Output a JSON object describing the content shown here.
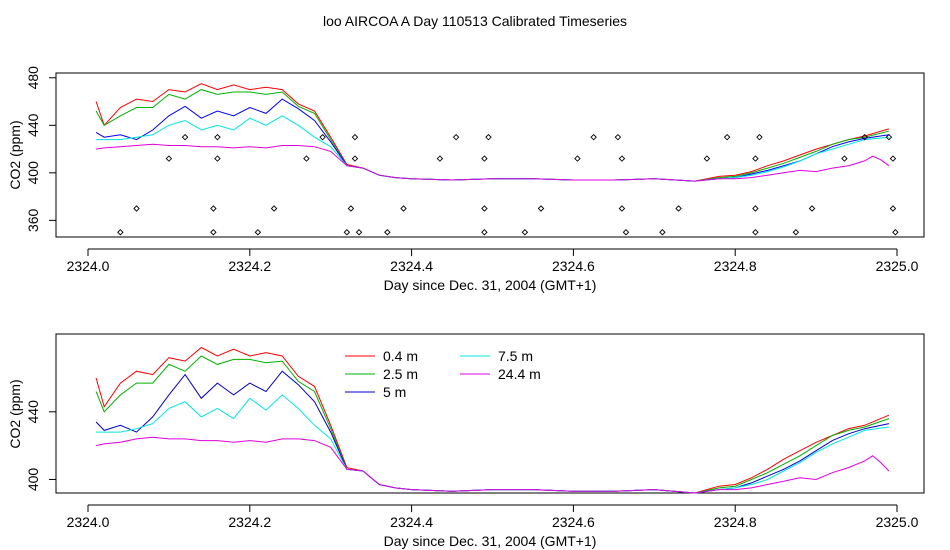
{
  "figure": {
    "title": "loo AIRCOA A  Day 110513  Calibrated Timeseries"
  },
  "chart_data": [
    {
      "type": "line",
      "xlabel": "Day since Dec. 31, 2004 (GMT+1)",
      "ylabel": "CO2 (ppm)",
      "xlim": [
        2324.0,
        2325.0
      ],
      "ylim": [
        346,
        484
      ],
      "xticks": [
        2324.0,
        2324.2,
        2324.4,
        2324.6,
        2324.8,
        2325.0
      ],
      "xtick_labels": [
        "2324.0",
        "2324.2",
        "2324.4",
        "2324.6",
        "2324.8",
        "2325.0"
      ],
      "yticks": [
        360,
        400,
        440,
        480
      ],
      "ytick_labels": [
        "360",
        "400",
        "440",
        "480"
      ],
      "grid": false,
      "legend": "none",
      "series": [
        {
          "color": "#ff0000",
          "x": [
            2324.01,
            2324.02,
            2324.04,
            2324.06,
            2324.08,
            2324.1,
            2324.12,
            2324.14,
            2324.16,
            2324.18,
            2324.2,
            2324.22,
            2324.24,
            2324.26,
            2324.28,
            2324.3,
            2324.32,
            2324.34,
            2324.36,
            2324.38,
            2324.4,
            2324.45,
            2324.5,
            2324.55,
            2324.6,
            2324.65,
            2324.7,
            2324.75,
            2324.78,
            2324.8,
            2324.82,
            2324.84,
            2324.86,
            2324.88,
            2324.9,
            2324.92,
            2324.94,
            2324.96,
            2324.99
          ],
          "values": [
            460,
            440,
            455,
            462,
            460,
            470,
            468,
            475,
            470,
            474,
            470,
            472,
            470,
            458,
            452,
            430,
            407,
            404,
            398,
            396,
            395,
            394,
            395,
            395,
            394,
            394,
            395,
            393,
            397,
            398,
            401,
            406,
            410,
            415,
            420,
            424,
            428,
            431,
            437
          ]
        },
        {
          "color": "#00b000",
          "x": [
            2324.01,
            2324.02,
            2324.04,
            2324.06,
            2324.08,
            2324.1,
            2324.12,
            2324.14,
            2324.16,
            2324.18,
            2324.2,
            2324.22,
            2324.24,
            2324.26,
            2324.28,
            2324.3,
            2324.32,
            2324.34,
            2324.36,
            2324.38,
            2324.4,
            2324.45,
            2324.5,
            2324.55,
            2324.6,
            2324.65,
            2324.7,
            2324.75,
            2324.78,
            2324.8,
            2324.82,
            2324.84,
            2324.86,
            2324.88,
            2324.9,
            2324.92,
            2324.94,
            2324.96,
            2324.99
          ],
          "values": [
            452,
            440,
            448,
            455,
            455,
            466,
            462,
            470,
            466,
            468,
            468,
            466,
            468,
            456,
            450,
            428,
            406,
            404,
            398,
            396,
            395,
            394,
            395,
            395,
            394,
            394,
            395,
            393,
            396,
            397,
            400,
            404,
            408,
            413,
            418,
            424,
            428,
            430,
            435
          ]
        },
        {
          "color": "#0000ff",
          "x": [
            2324.01,
            2324.02,
            2324.04,
            2324.06,
            2324.08,
            2324.1,
            2324.12,
            2324.14,
            2324.16,
            2324.18,
            2324.2,
            2324.22,
            2324.24,
            2324.26,
            2324.28,
            2324.3,
            2324.32,
            2324.34,
            2324.36,
            2324.38,
            2324.4,
            2324.45,
            2324.5,
            2324.55,
            2324.6,
            2324.65,
            2324.7,
            2324.75,
            2324.78,
            2324.8,
            2324.82,
            2324.84,
            2324.86,
            2324.88,
            2324.9,
            2324.92,
            2324.94,
            2324.96,
            2324.99
          ],
          "values": [
            434,
            430,
            432,
            428,
            436,
            448,
            456,
            446,
            452,
            448,
            455,
            450,
            462,
            454,
            444,
            426,
            406,
            404,
            398,
            396,
            395,
            394,
            395,
            395,
            394,
            394,
            395,
            393,
            395,
            396,
            399,
            402,
            406,
            410,
            416,
            422,
            426,
            429,
            432
          ]
        },
        {
          "color": "#00e5e5",
          "x": [
            2324.01,
            2324.02,
            2324.04,
            2324.06,
            2324.08,
            2324.1,
            2324.12,
            2324.14,
            2324.16,
            2324.18,
            2324.2,
            2324.22,
            2324.24,
            2324.26,
            2324.28,
            2324.3,
            2324.32,
            2324.34,
            2324.36,
            2324.38,
            2324.4,
            2324.45,
            2324.5,
            2324.55,
            2324.6,
            2324.65,
            2324.7,
            2324.75,
            2324.78,
            2324.8,
            2324.82,
            2324.84,
            2324.86,
            2324.88,
            2324.9,
            2324.92,
            2324.94,
            2324.96,
            2324.99
          ],
          "values": [
            428,
            428,
            428,
            430,
            432,
            440,
            444,
            436,
            440,
            436,
            446,
            440,
            448,
            440,
            430,
            422,
            406,
            404,
            398,
            396,
            395,
            394,
            395,
            395,
            394,
            394,
            395,
            393,
            395,
            396,
            398,
            401,
            405,
            410,
            416,
            420,
            424,
            428,
            430
          ]
        },
        {
          "color": "#e000e0",
          "x": [
            2324.01,
            2324.02,
            2324.04,
            2324.06,
            2324.08,
            2324.1,
            2324.12,
            2324.14,
            2324.16,
            2324.18,
            2324.2,
            2324.22,
            2324.24,
            2324.26,
            2324.28,
            2324.3,
            2324.32,
            2324.34,
            2324.36,
            2324.38,
            2324.4,
            2324.45,
            2324.5,
            2324.55,
            2324.6,
            2324.65,
            2324.7,
            2324.75,
            2324.78,
            2324.8,
            2324.82,
            2324.84,
            2324.86,
            2324.88,
            2324.9,
            2324.92,
            2324.94,
            2324.96,
            2324.97,
            2324.98,
            2324.99
          ],
          "values": [
            420,
            421,
            422,
            423,
            424,
            423,
            423,
            422,
            422,
            421,
            422,
            421,
            423,
            423,
            422,
            418,
            406,
            404,
            398,
            396,
            395,
            394,
            395,
            395,
            394,
            394,
            395,
            393,
            395,
            395,
            396,
            398,
            400,
            402,
            401,
            404,
            406,
            410,
            414,
            411,
            406
          ]
        }
      ],
      "points": {
        "symbol": "diamond",
        "x": [
          2324.04,
          2324.06,
          2324.1,
          2324.12,
          2324.155,
          2324.155,
          2324.16,
          2324.16,
          2324.21,
          2324.23,
          2324.27,
          2324.29,
          2324.32,
          2324.325,
          2324.33,
          2324.33,
          2324.335,
          2324.37,
          2324.39,
          2324.435,
          2324.455,
          2324.49,
          2324.49,
          2324.49,
          2324.495,
          2324.54,
          2324.56,
          2324.605,
          2324.625,
          2324.655,
          2324.66,
          2324.66,
          2324.665,
          2324.71,
          2324.73,
          2324.765,
          2324.79,
          2324.825,
          2324.825,
          2324.825,
          2324.83,
          2324.875,
          2324.895,
          2324.935,
          2324.96,
          2324.99,
          2324.995,
          2324.995,
          2324.998
        ],
        "values": [
          350,
          370,
          412,
          430,
          350,
          370,
          412,
          430,
          350,
          370,
          412,
          430,
          350,
          370,
          412,
          430,
          350,
          350,
          370,
          412,
          430,
          350,
          370,
          412,
          430,
          350,
          370,
          412,
          430,
          430,
          412,
          370,
          350,
          350,
          370,
          412,
          430,
          350,
          370,
          412,
          430,
          350,
          370,
          412,
          430,
          430,
          412,
          370,
          350
        ]
      }
    },
    {
      "type": "line",
      "xlabel": "Day since Dec. 31, 2004 (GMT+1)",
      "ylabel": "CO2 (ppm)",
      "xlim": [
        2324.0,
        2325.0
      ],
      "ylim": [
        392,
        486
      ],
      "xticks": [
        2324.0,
        2324.2,
        2324.4,
        2324.6,
        2324.8,
        2325.0
      ],
      "xtick_labels": [
        "2324.0",
        "2324.2",
        "2324.4",
        "2324.6",
        "2324.8",
        "2325.0"
      ],
      "yticks": [
        400,
        440
      ],
      "ytick_labels": [
        "400",
        "440"
      ],
      "grid": false,
      "legend": "top-left",
      "series": [
        {
          "name": "0.4 m",
          "color": "#ff0000",
          "x": [
            2324.01,
            2324.02,
            2324.04,
            2324.06,
            2324.08,
            2324.1,
            2324.12,
            2324.14,
            2324.16,
            2324.18,
            2324.2,
            2324.22,
            2324.24,
            2324.26,
            2324.28,
            2324.3,
            2324.32,
            2324.34,
            2324.36,
            2324.38,
            2324.4,
            2324.45,
            2324.5,
            2324.55,
            2324.6,
            2324.65,
            2324.7,
            2324.75,
            2324.78,
            2324.8,
            2324.82,
            2324.84,
            2324.86,
            2324.88,
            2324.9,
            2324.92,
            2324.94,
            2324.96,
            2324.99
          ],
          "values": [
            460,
            443,
            457,
            464,
            462,
            472,
            470,
            478,
            473,
            477,
            473,
            475,
            473,
            461,
            455,
            432,
            407,
            405,
            397,
            395,
            394,
            393,
            394,
            394,
            393,
            393,
            394,
            392,
            396,
            397,
            401,
            406,
            412,
            417,
            422,
            426,
            430,
            432,
            438
          ]
        },
        {
          "name": "2.5 m",
          "color": "#00b000",
          "x": [
            2324.01,
            2324.02,
            2324.04,
            2324.06,
            2324.08,
            2324.1,
            2324.12,
            2324.14,
            2324.16,
            2324.18,
            2324.2,
            2324.22,
            2324.24,
            2324.26,
            2324.28,
            2324.3,
            2324.32,
            2324.34,
            2324.36,
            2324.38,
            2324.4,
            2324.45,
            2324.5,
            2324.55,
            2324.6,
            2324.65,
            2324.7,
            2324.75,
            2324.78,
            2324.8,
            2324.82,
            2324.84,
            2324.86,
            2324.88,
            2324.9,
            2324.92,
            2324.94,
            2324.96,
            2324.99
          ],
          "values": [
            452,
            440,
            450,
            457,
            457,
            468,
            464,
            473,
            468,
            471,
            471,
            469,
            470,
            458,
            452,
            430,
            406,
            405,
            397,
            395,
            394,
            393,
            394,
            394,
            393,
            393,
            394,
            392,
            395,
            396,
            400,
            404,
            409,
            414,
            420,
            426,
            429,
            431,
            436
          ]
        },
        {
          "name": "5 m",
          "color": "#0000cc",
          "x": [
            2324.01,
            2324.02,
            2324.04,
            2324.06,
            2324.08,
            2324.1,
            2324.12,
            2324.14,
            2324.16,
            2324.18,
            2324.2,
            2324.22,
            2324.24,
            2324.26,
            2324.28,
            2324.3,
            2324.32,
            2324.34,
            2324.36,
            2324.38,
            2324.4,
            2324.45,
            2324.5,
            2324.55,
            2324.6,
            2324.65,
            2324.7,
            2324.75,
            2324.78,
            2324.8,
            2324.82,
            2324.84,
            2324.86,
            2324.88,
            2324.9,
            2324.92,
            2324.94,
            2324.96,
            2324.99
          ],
          "values": [
            434,
            429,
            432,
            428,
            437,
            450,
            462,
            448,
            457,
            450,
            457,
            452,
            464,
            456,
            446,
            428,
            406,
            405,
            397,
            395,
            394,
            393,
            394,
            394,
            393,
            393,
            394,
            392,
            394,
            395,
            398,
            402,
            406,
            411,
            417,
            423,
            427,
            430,
            433
          ]
        },
        {
          "name": "7.5 m",
          "color": "#00e5e5",
          "x": [
            2324.01,
            2324.02,
            2324.04,
            2324.06,
            2324.08,
            2324.1,
            2324.12,
            2324.14,
            2324.16,
            2324.18,
            2324.2,
            2324.22,
            2324.24,
            2324.26,
            2324.28,
            2324.3,
            2324.32,
            2324.34,
            2324.36,
            2324.38,
            2324.4,
            2324.45,
            2324.5,
            2324.55,
            2324.6,
            2324.65,
            2324.7,
            2324.75,
            2324.78,
            2324.8,
            2324.82,
            2324.84,
            2324.86,
            2324.88,
            2324.9,
            2324.92,
            2324.94,
            2324.96,
            2324.99
          ],
          "values": [
            428,
            428,
            428,
            430,
            433,
            442,
            446,
            437,
            442,
            436,
            448,
            441,
            450,
            442,
            432,
            424,
            406,
            405,
            397,
            395,
            394,
            393,
            394,
            394,
            393,
            393,
            394,
            392,
            394,
            395,
            397,
            400,
            405,
            410,
            416,
            421,
            425,
            429,
            431
          ]
        },
        {
          "name": "24.4 m",
          "color": "#e000e0",
          "x": [
            2324.01,
            2324.02,
            2324.04,
            2324.06,
            2324.08,
            2324.1,
            2324.12,
            2324.14,
            2324.16,
            2324.18,
            2324.2,
            2324.22,
            2324.24,
            2324.26,
            2324.28,
            2324.3,
            2324.32,
            2324.34,
            2324.36,
            2324.38,
            2324.4,
            2324.45,
            2324.5,
            2324.55,
            2324.6,
            2324.65,
            2324.7,
            2324.75,
            2324.78,
            2324.8,
            2324.82,
            2324.84,
            2324.86,
            2324.88,
            2324.9,
            2324.92,
            2324.94,
            2324.96,
            2324.97,
            2324.98,
            2324.99
          ],
          "values": [
            420,
            421,
            422,
            424,
            425,
            424,
            424,
            423,
            423,
            422,
            423,
            422,
            424,
            424,
            423,
            419,
            406,
            405,
            397,
            395,
            394,
            393,
            394,
            394,
            393,
            393,
            394,
            392,
            394,
            394,
            395,
            397,
            399,
            401,
            400,
            404,
            407,
            411,
            414,
            410,
            405
          ]
        }
      ]
    }
  ]
}
